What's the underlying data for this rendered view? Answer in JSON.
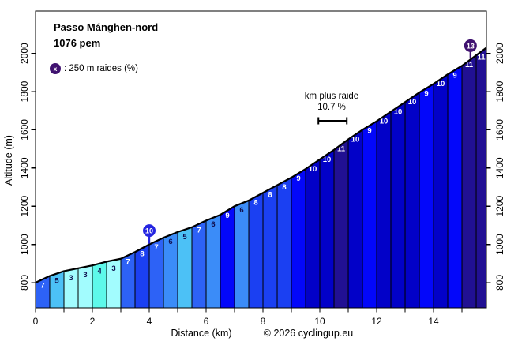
{
  "title": "Passo Mánghen-nord",
  "subtitle": "1076 pem",
  "legend": {
    "marker_symbol": "x",
    "marker_color": "#401270",
    "label": ": 250 m raides (%)"
  },
  "axes": {
    "x_label": "Distance (km)",
    "y_label": "Altitude (m)",
    "x_labeled_ticks": [
      0,
      2,
      4,
      6,
      8,
      10,
      12,
      14
    ],
    "x_minor_ticks": [
      1,
      3,
      5,
      7,
      9,
      11,
      13,
      15
    ],
    "y_ticks": [
      800,
      1000,
      1200,
      1400,
      1600,
      1800,
      2000
    ]
  },
  "footer": {
    "copyright": "© 2026 cyclingup.eu"
  },
  "chart_data": {
    "type": "area",
    "title": "Passo Mánghen-nord",
    "subtitle": "1076 pem",
    "xlabel": "Distance (km)",
    "ylabel": "Altitude (m)",
    "xlim": [
      0,
      15.86
    ],
    "ylim_ticks": [
      800,
      2000
    ],
    "segment_length_km": 0.5,
    "start_altitude_m": 800,
    "summit_altitude_m": 2030,
    "gradients_pct": [
      7,
      5,
      3,
      3,
      4,
      3,
      7,
      8,
      7,
      6,
      5,
      7,
      6,
      9,
      6,
      8,
      8,
      8,
      9,
      10,
      10,
      11,
      10,
      9,
      10,
      10,
      10,
      9,
      10,
      9,
      11,
      11
    ],
    "gradient_color_scale": {
      "3": "#a2fcfe",
      "4": "#5df9ea",
      "5": "#4cc1f6",
      "6": "#3b8cf8",
      "7": "#2d62f6",
      "8": "#1b40f2",
      "9": "#0307fa",
      "10": "#0201c8",
      "11": "#211093"
    },
    "bar_label_white_min_pct": 7,
    "bar_label_dark_color": "#101050",
    "markers_steepest_250m": [
      {
        "label": "10",
        "km": 4.0,
        "color": "#2525e1"
      },
      {
        "label": "13",
        "km": 15.3,
        "color": "#401270"
      }
    ],
    "steepest_km": {
      "line1": "km plus raide",
      "line2": "10.7 %",
      "from_km": 9.95,
      "to_km": 10.95
    },
    "outline_color": "#000000",
    "grid": false,
    "legend_position": "top-left"
  }
}
